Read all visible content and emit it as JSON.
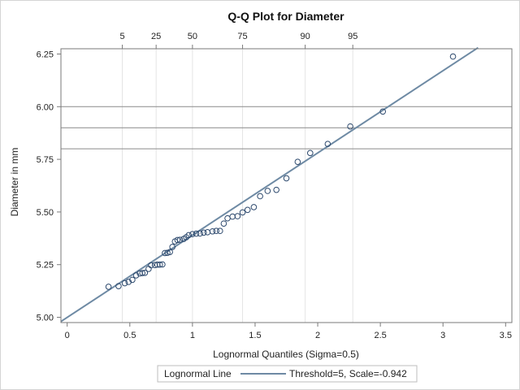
{
  "chart_data": {
    "type": "scatter",
    "title": "Q-Q Plot for Diameter",
    "xlabel": "Lognormal Quantiles (Sigma=0.5)",
    "ylabel": "Diameter in mm",
    "xlim": [
      -0.05,
      3.55
    ],
    "ylim": [
      4.975,
      6.275
    ],
    "x_ticks": [
      "0",
      "0.5",
      "1",
      "1.5",
      "2",
      "2.5",
      "3",
      "3.5"
    ],
    "x_tick_values": [
      0,
      0.5,
      1,
      1.5,
      2,
      2.5,
      3,
      3.5
    ],
    "y_ticks": [
      "5.00",
      "5.25",
      "5.50",
      "5.75",
      "6.00",
      "6.25"
    ],
    "y_tick_values": [
      5.0,
      5.25,
      5.5,
      5.75,
      6.0,
      6.25
    ],
    "percentile_ticks": [
      "5",
      "25",
      "50",
      "75",
      "90",
      "95"
    ],
    "percentile_tick_values": [
      0.44,
      0.71,
      1.0,
      1.4,
      1.9,
      2.28
    ],
    "reference_lines_y": [
      5.8,
      5.9,
      6.0
    ],
    "fit_line": {
      "x": [
        -0.05,
        3.28
      ],
      "y": [
        4.98,
        6.28
      ]
    },
    "points": [
      [
        0.33,
        5.145
      ],
      [
        0.41,
        5.148
      ],
      [
        0.46,
        5.162
      ],
      [
        0.49,
        5.168
      ],
      [
        0.52,
        5.178
      ],
      [
        0.55,
        5.199
      ],
      [
        0.58,
        5.208
      ],
      [
        0.6,
        5.21
      ],
      [
        0.62,
        5.211
      ],
      [
        0.65,
        5.23
      ],
      [
        0.67,
        5.247
      ],
      [
        0.7,
        5.248
      ],
      [
        0.72,
        5.25
      ],
      [
        0.74,
        5.25
      ],
      [
        0.76,
        5.251
      ],
      [
        0.78,
        5.305
      ],
      [
        0.8,
        5.306
      ],
      [
        0.82,
        5.31
      ],
      [
        0.84,
        5.334
      ],
      [
        0.86,
        5.36
      ],
      [
        0.88,
        5.367
      ],
      [
        0.9,
        5.368
      ],
      [
        0.93,
        5.372
      ],
      [
        0.95,
        5.38
      ],
      [
        0.97,
        5.39
      ],
      [
        1.0,
        5.395
      ],
      [
        1.03,
        5.397
      ],
      [
        1.06,
        5.398
      ],
      [
        1.09,
        5.402
      ],
      [
        1.12,
        5.404
      ],
      [
        1.16,
        5.408
      ],
      [
        1.19,
        5.41
      ],
      [
        1.22,
        5.41
      ],
      [
        1.25,
        5.445
      ],
      [
        1.28,
        5.47
      ],
      [
        1.32,
        5.478
      ],
      [
        1.36,
        5.48
      ],
      [
        1.4,
        5.498
      ],
      [
        1.44,
        5.51
      ],
      [
        1.49,
        5.523
      ],
      [
        1.54,
        5.575
      ],
      [
        1.6,
        5.6
      ],
      [
        1.67,
        5.605
      ],
      [
        1.75,
        5.66
      ],
      [
        1.84,
        5.738
      ],
      [
        1.94,
        5.78
      ],
      [
        2.08,
        5.823
      ],
      [
        2.26,
        5.906
      ],
      [
        2.52,
        5.977
      ],
      [
        3.08,
        6.238
      ]
    ],
    "legend": {
      "title": "Lognormal Line",
      "entry": "Threshold=5, Scale=-0.942",
      "placement": "bottom-center"
    },
    "colors": {
      "marker": "#2e4a6e",
      "fit_line": "#6e8aa4",
      "reference_line": "#8a8a8a",
      "grid": "#e4e4e4",
      "axis": "#7a7a7a"
    }
  }
}
